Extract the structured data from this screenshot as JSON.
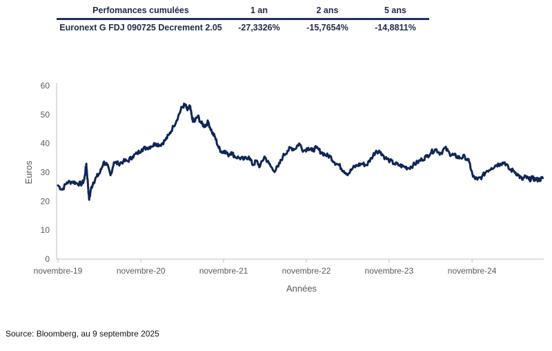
{
  "table": {
    "headers": [
      "Perfomances cumulées",
      "1 an",
      "2 ans",
      "5 ans"
    ],
    "rows": [
      {
        "name": "Euronext G FDJ 090725 Decrement 2.05",
        "y1": "-27,3326%",
        "y2": "-15,7654%",
        "y5": "-14,8811%"
      }
    ]
  },
  "source": "Source: Bloomberg, au 9 septembre 2025",
  "colors": {
    "line": "#0f2557",
    "axis": "#bfbfbf",
    "text": "#595959"
  },
  "chart_data": {
    "type": "line",
    "title": "",
    "xlabel": "Années",
    "ylabel": "Euros",
    "ylim": [
      0,
      60
    ],
    "yticks": [
      0,
      10,
      20,
      30,
      40,
      50,
      60
    ],
    "xticks": [
      "novembre-19",
      "novembre-20",
      "novembre-21",
      "novembre-22",
      "novembre-23",
      "novembre-24"
    ],
    "xrange": [
      "2019-11",
      "2025-09"
    ],
    "grid": false,
    "series": [
      {
        "x": [
          "2019-11-01",
          "2019-11-20",
          "2019-12-10",
          "2020-01-05",
          "2020-01-25",
          "2020-02-15",
          "2020-02-25",
          "2020-03-05",
          "2020-03-12",
          "2020-03-18",
          "2020-03-25",
          "2020-04-05",
          "2020-04-20",
          "2020-05-05",
          "2020-05-20",
          "2020-06-05",
          "2020-06-20",
          "2020-07-05",
          "2020-07-25",
          "2020-08-15",
          "2020-09-05",
          "2020-09-25",
          "2020-10-15",
          "2020-11-05",
          "2020-11-25",
          "2020-12-15",
          "2021-01-05",
          "2021-01-25",
          "2021-02-15",
          "2021-03-05",
          "2021-03-25",
          "2021-04-15",
          "2021-05-01",
          "2021-05-15",
          "2021-05-25",
          "2021-06-05",
          "2021-06-15",
          "2021-06-25",
          "2021-07-10",
          "2021-07-25",
          "2021-08-10",
          "2021-08-25",
          "2021-09-10",
          "2021-09-25",
          "2021-10-10",
          "2021-10-25",
          "2021-11-05",
          "2021-11-20",
          "2021-12-05",
          "2021-12-20",
          "2022-01-10",
          "2022-01-30",
          "2022-02-20",
          "2022-03-10",
          "2022-03-25",
          "2022-04-10",
          "2022-04-30",
          "2022-05-20",
          "2022-06-10",
          "2022-06-30",
          "2022-07-20",
          "2022-08-10",
          "2022-08-25",
          "2022-09-10",
          "2022-09-30",
          "2022-10-20",
          "2022-11-10",
          "2022-11-25",
          "2022-12-15",
          "2023-01-05",
          "2023-01-25",
          "2023-02-15",
          "2023-03-05",
          "2023-03-25",
          "2023-04-15",
          "2023-05-05",
          "2023-05-25",
          "2023-06-15",
          "2023-07-05",
          "2023-07-25",
          "2023-08-15",
          "2023-09-05",
          "2023-09-25",
          "2023-10-15",
          "2023-11-05",
          "2023-11-25",
          "2023-12-15",
          "2024-01-05",
          "2024-01-25",
          "2024-02-15",
          "2024-03-05",
          "2024-03-25",
          "2024-04-15",
          "2024-05-05",
          "2024-05-25",
          "2024-06-15",
          "2024-07-05",
          "2024-07-25",
          "2024-08-10",
          "2024-08-25",
          "2024-09-10",
          "2024-09-30",
          "2024-10-20",
          "2024-11-05",
          "2024-11-25",
          "2024-12-15",
          "2025-01-05",
          "2025-01-25",
          "2025-02-15",
          "2025-03-05",
          "2025-03-25",
          "2025-04-15",
          "2025-05-05",
          "2025-05-25",
          "2025-06-10",
          "2025-06-25",
          "2025-07-10",
          "2025-07-25",
          "2025-08-10",
          "2025-08-25",
          "2025-09-09"
        ],
        "values": [
          25.5,
          24.0,
          26.5,
          26.8,
          26.2,
          26.0,
          27.5,
          33.0,
          26.0,
          20.5,
          24.0,
          26.5,
          28.5,
          30.0,
          33.5,
          32.5,
          29.0,
          33.5,
          33.0,
          33.8,
          34.0,
          35.5,
          36.5,
          38.0,
          38.5,
          39.0,
          40.0,
          39.5,
          41.0,
          43.0,
          46.0,
          49.5,
          52.5,
          53.5,
          51.5,
          53.0,
          48.5,
          47.5,
          49.5,
          47.0,
          46.0,
          47.5,
          44.0,
          42.0,
          38.5,
          37.0,
          37.5,
          36.0,
          37.0,
          35.5,
          35.0,
          34.5,
          35.5,
          32.5,
          34.0,
          32.0,
          35.5,
          33.0,
          30.5,
          32.0,
          35.5,
          37.5,
          38.5,
          38.0,
          40.0,
          37.5,
          38.5,
          37.5,
          38.5,
          37.0,
          36.0,
          35.5,
          33.5,
          32.5,
          30.5,
          29.5,
          31.5,
          32.5,
          33.0,
          32.5,
          35.0,
          37.5,
          37.0,
          35.0,
          34.0,
          33.0,
          32.5,
          32.0,
          31.5,
          32.5,
          33.5,
          34.5,
          35.5,
          37.0,
          38.0,
          36.5,
          38.5,
          36.5,
          36.0,
          35.5,
          35.0,
          35.5,
          33.5,
          28.5,
          27.5,
          28.5,
          30.5,
          31.5,
          32.5,
          33.0,
          33.5,
          31.0,
          30.5,
          29.0,
          27.5,
          28.5,
          27.5,
          28.0,
          27.5,
          27.5,
          28.0
        ]
      }
    ]
  }
}
